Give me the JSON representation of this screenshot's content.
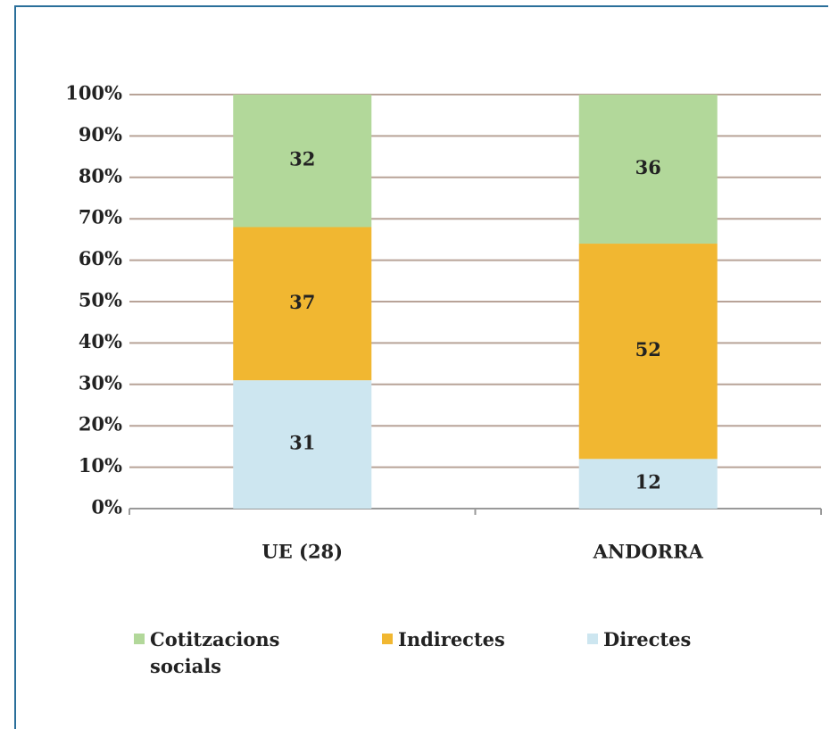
{
  "chart_data": {
    "type": "stacked-bar",
    "categories": [
      "UE (28)",
      "ANDORRA"
    ],
    "series": [
      {
        "name": "Directes",
        "color": "#cde6f0",
        "values": [
          31,
          12
        ]
      },
      {
        "name": "Indirectes",
        "color": "#f1b731",
        "values": [
          37,
          52
        ]
      },
      {
        "name": "Cotitzacions socials",
        "color": "#b2d89a",
        "values": [
          32,
          36
        ]
      }
    ],
    "ylim": [
      0,
      100
    ],
    "yticks": [
      {
        "value": 0,
        "label": "0%"
      },
      {
        "value": 10,
        "label": "10%"
      },
      {
        "value": 20,
        "label": "20%"
      },
      {
        "value": 30,
        "label": "30%"
      },
      {
        "value": 40,
        "label": "40%"
      },
      {
        "value": 50,
        "label": "50%"
      },
      {
        "value": 60,
        "label": "60%"
      },
      {
        "value": 70,
        "label": "70%"
      },
      {
        "value": 80,
        "label": "80%"
      },
      {
        "value": 90,
        "label": "90%"
      },
      {
        "value": 100,
        "label": "100%"
      }
    ],
    "grid": true,
    "legend": "bottom"
  }
}
